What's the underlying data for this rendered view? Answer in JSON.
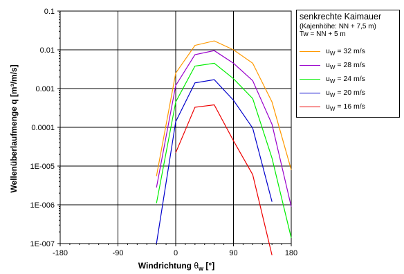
{
  "chart_data": {
    "type": "line",
    "xlabel": "Windrichtung",
    "xlabel_symbol": "θ",
    "xlabel_sub": "w",
    "xlabel_unit": "[°]",
    "ylabel": "Wellenüberlaufmenge q   [m³/m/s]",
    "xlim": [
      -180,
      180
    ],
    "ylim": [
      1e-07,
      0.1
    ],
    "yscale": "log",
    "xticks": [
      -180,
      -90,
      0,
      90,
      180
    ],
    "xtick_labels": [
      "-180",
      "-90",
      "0",
      "90",
      "180"
    ],
    "ytick_labels": [
      "1E-007",
      "1E-006",
      "1E-005",
      "0.0001",
      "0.001",
      "0.01",
      "0.1"
    ],
    "grid": true,
    "legend": {
      "placement": "right",
      "title": "senkrechte Kaimauer",
      "subtitle1": "(Kajenhöhe: NN + 7,5 m)",
      "subtitle2": "Tw = NN + 5 m"
    },
    "series": [
      {
        "label_prefix": "u",
        "label_sub": "W",
        "label_suffix": " = 32 m/s",
        "color": "#FF9900",
        "x": [
          -30,
          0,
          30,
          60,
          90,
          120,
          150,
          180
        ],
        "y": [
          5.5e-06,
          0.0025,
          0.013,
          0.017,
          0.01,
          0.0045,
          0.00045,
          8e-06
        ]
      },
      {
        "label_prefix": "u",
        "label_sub": "W",
        "label_suffix": " = 28 m/s",
        "color": "#9900CC",
        "x": [
          -30,
          0,
          30,
          60,
          90,
          120,
          150,
          180
        ],
        "y": [
          2.8e-06,
          0.0012,
          0.0075,
          0.0095,
          0.0045,
          0.0016,
          0.00012,
          9e-07
        ]
      },
      {
        "label_prefix": "u",
        "label_sub": "W",
        "label_suffix": " = 24 m/s",
        "color": "#00EE00",
        "x": [
          -30,
          0,
          30,
          60,
          90,
          120,
          150,
          180
        ],
        "y": [
          1.1e-06,
          0.00045,
          0.0038,
          0.0045,
          0.0018,
          0.00055,
          1.6e-05,
          1.4e-07
        ]
      },
      {
        "label_prefix": "u",
        "label_sub": "W",
        "label_suffix": " = 20 m/s",
        "color": "#0000CC",
        "x": [
          -30,
          0,
          30,
          60,
          90,
          120,
          150
        ],
        "y": [
          1e-07,
          0.00014,
          0.0014,
          0.0017,
          0.0005,
          9.5e-05,
          1.2e-06
        ]
      },
      {
        "label_prefix": "u",
        "label_sub": "W",
        "label_suffix": " = 16 m/s",
        "color": "#EE0000",
        "x": [
          0,
          30,
          60,
          90,
          120,
          150
        ],
        "y": [
          2.2e-05,
          0.00033,
          0.00038,
          4.5e-05,
          6e-06,
          5e-08
        ]
      }
    ]
  }
}
